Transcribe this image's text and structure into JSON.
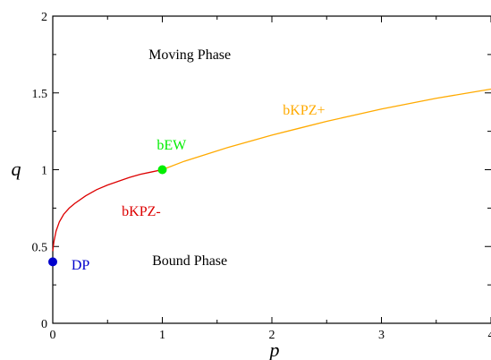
{
  "chart_data": {
    "type": "line",
    "xlabel": "p",
    "ylabel": "q",
    "xlim": [
      0,
      4
    ],
    "ylim": [
      0,
      2
    ],
    "x_ticks": [
      0,
      1,
      2,
      3,
      4
    ],
    "y_ticks": [
      0,
      0.5,
      1,
      1.5,
      2
    ],
    "x_tick_labels": [
      "0",
      "1",
      "2",
      "3",
      "4"
    ],
    "y_tick_labels": [
      "0",
      "0.5",
      "1",
      "1.5",
      "2"
    ],
    "grid": false,
    "series": [
      {
        "name": "bKPZ-",
        "color": "#dd0000",
        "x": [
          0,
          0.01,
          0.03,
          0.06,
          0.1,
          0.15,
          0.2,
          0.3,
          0.4,
          0.5,
          0.6,
          0.7,
          0.8,
          0.9,
          1.0
        ],
        "y": [
          0.47,
          0.53,
          0.6,
          0.66,
          0.71,
          0.75,
          0.78,
          0.83,
          0.87,
          0.9,
          0.925,
          0.95,
          0.97,
          0.985,
          1.0
        ]
      },
      {
        "name": "bKPZ+",
        "color": "#ffaa00",
        "x": [
          1.0,
          1.2,
          1.4,
          1.6,
          1.8,
          2.0,
          2.25,
          2.5,
          2.75,
          3.0,
          3.25,
          3.5,
          3.75,
          4.0
        ],
        "y": [
          1.0,
          1.055,
          1.1,
          1.145,
          1.185,
          1.225,
          1.27,
          1.315,
          1.355,
          1.395,
          1.43,
          1.465,
          1.495,
          1.525
        ]
      }
    ],
    "points": [
      {
        "label": "DP",
        "x": 0,
        "y": 0.4,
        "color": "#0000cc"
      },
      {
        "label": "bEW",
        "x": 1.0,
        "y": 1.0,
        "color": "#00ee00"
      }
    ],
    "annotations": [
      {
        "text": "Moving Phase",
        "x": 1.25,
        "y": 1.72,
        "color": "#000000"
      },
      {
        "text": "Bound Phase",
        "x": 1.25,
        "y": 0.38,
        "color": "#000000"
      },
      {
        "text": "bKPZ+",
        "x": 2.1,
        "y": 1.36,
        "color": "#ffaa00"
      },
      {
        "text": "bKPZ-",
        "x": 0.63,
        "y": 0.7,
        "color": "#dd0000"
      },
      {
        "text": "bEW",
        "x": 0.95,
        "y": 1.13,
        "color": "#00ee00"
      },
      {
        "text": "DP",
        "x": 0.17,
        "y": 0.35,
        "color": "#0000cc"
      }
    ]
  }
}
